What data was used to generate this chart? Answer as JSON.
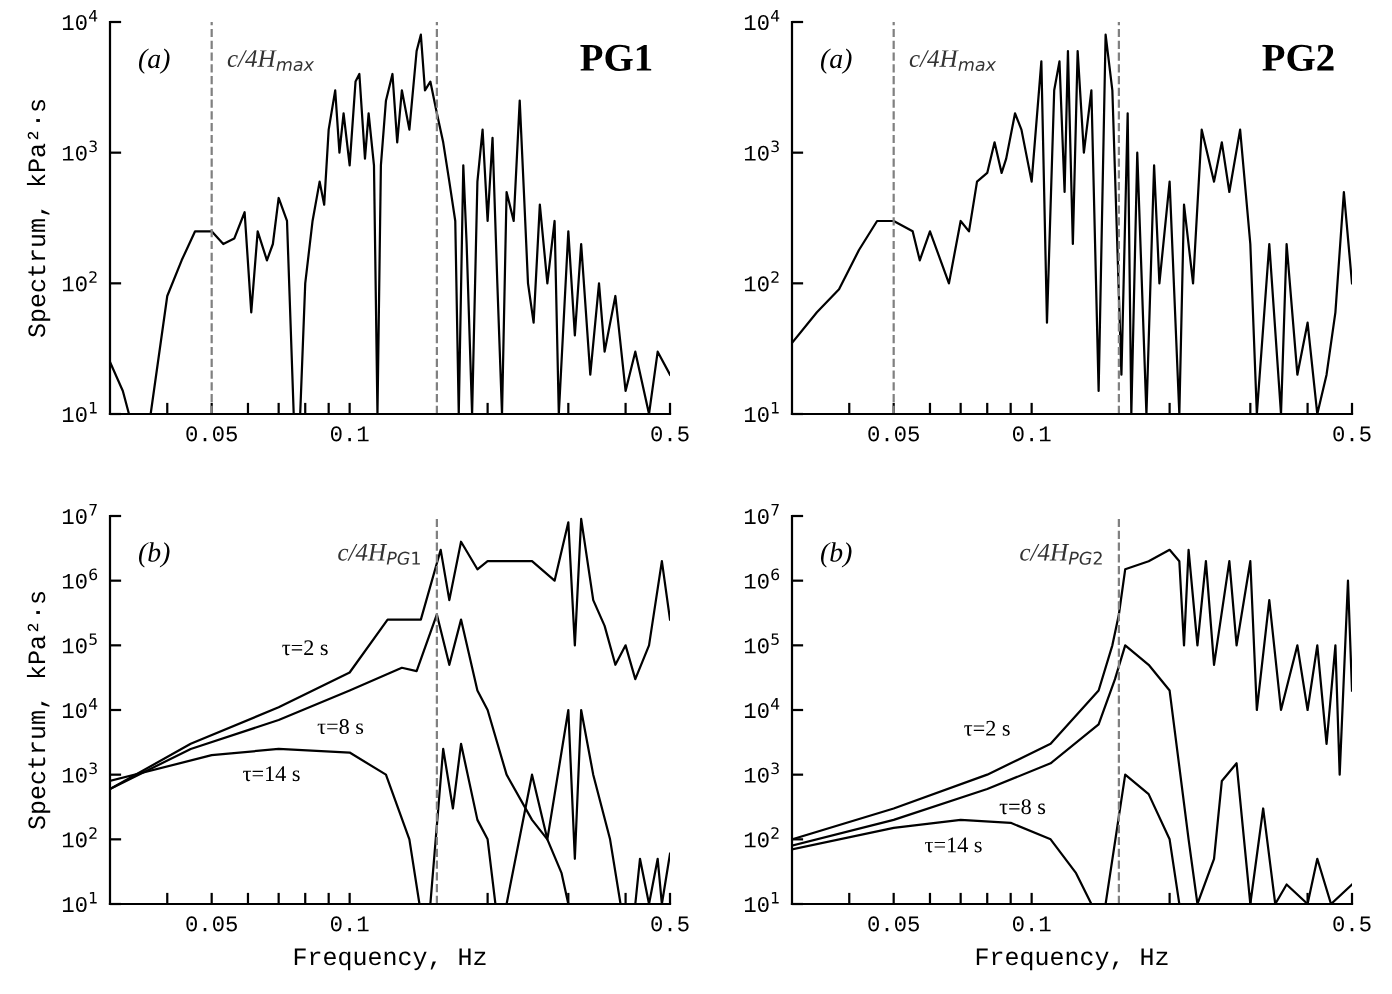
{
  "chart_data": [
    {
      "type": "line",
      "log": "xy",
      "ylabel": "Spectrum, kPa²·s",
      "xlim": [
        0.03,
        0.5
      ],
      "ylim": [
        10,
        10000
      ],
      "xticks": [
        {
          "value": 0.04,
          "label": null
        },
        {
          "value": 0.05,
          "label": "0.05"
        },
        {
          "value": 0.06,
          "label": null
        },
        {
          "value": 0.07,
          "label": null
        },
        {
          "value": 0.08,
          "label": null
        },
        {
          "value": 0.09,
          "label": null
        },
        {
          "value": 0.1,
          "label": "0.1"
        },
        {
          "value": 0.2,
          "label": null
        },
        {
          "value": 0.3,
          "label": null
        },
        {
          "value": 0.4,
          "label": null
        },
        {
          "value": 0.5,
          "label": "0.5"
        }
      ],
      "yticks": [
        {
          "value": 10,
          "label": "10$^{1}$"
        },
        {
          "value": 100,
          "label": "10$^{2}$"
        },
        {
          "value": 1000,
          "label": "10$^{3}$"
        },
        {
          "value": 10000,
          "label": "10$^{4}$"
        }
      ],
      "ref_lines": [
        {
          "axis": "x",
          "value": 0.05,
          "label": "c/4H$_{max}$",
          "color": "#808080",
          "line_style": "dashed"
        },
        {
          "axis": "x",
          "value": 0.155,
          "label": null,
          "color": "#808080",
          "line_style": "dashed"
        }
      ],
      "annotations": [
        "(a)",
        "PG1"
      ],
      "series": [
        {
          "color": "#000000",
          "x": [
            0.03,
            0.032,
            0.033,
            0.0368,
            0.04,
            0.043,
            0.046,
            0.05,
            0.053,
            0.056,
            0.059,
            0.061,
            0.063,
            0.066,
            0.068,
            0.07,
            0.073,
            0.0755,
            0.078,
            0.08,
            0.083,
            0.086,
            0.088,
            0.09,
            0.093,
            0.095,
            0.097,
            0.1,
            0.103,
            0.105,
            0.108,
            0.11,
            0.113,
            0.115,
            0.117,
            0.12,
            0.124,
            0.127,
            0.13,
            0.135,
            0.14,
            0.143,
            0.146,
            0.15,
            0.155,
            0.16,
            0.165,
            0.17,
            0.173,
            0.177,
            0.18,
            0.185,
            0.19,
            0.195,
            0.2,
            0.205,
            0.21,
            0.215,
            0.22,
            0.228,
            0.235,
            0.24,
            0.245,
            0.252,
            0.26,
            0.27,
            0.28,
            0.286,
            0.3,
            0.31,
            0.32,
            0.335,
            0.35,
            0.36,
            0.38,
            0.4,
            0.42,
            0.45,
            0.47,
            0.5
          ],
          "values": [
            25,
            15,
            10,
            10,
            80,
            150,
            250,
            250,
            200,
            220,
            350,
            60,
            250,
            150,
            200,
            450,
            300,
            10,
            10,
            100,
            300,
            600,
            400,
            1500,
            3000,
            1000,
            2000,
            800,
            3500,
            4000,
            900,
            2000,
            800,
            10,
            800,
            2500,
            4000,
            1200,
            3000,
            1500,
            6000,
            8000,
            3000,
            3500,
            2000,
            1200,
            600,
            300,
            10,
            800,
            200,
            10,
            600,
            1500,
            300,
            1300,
            100,
            10,
            500,
            300,
            2500,
            500,
            100,
            50,
            400,
            100,
            300,
            10,
            250,
            40,
            200,
            20,
            100,
            30,
            80,
            15,
            30,
            10,
            30,
            20
          ]
        }
      ]
    },
    {
      "type": "line",
      "log": "xy",
      "xlim": [
        0.03,
        0.5
      ],
      "ylim": [
        10,
        10000
      ],
      "xticks": [
        {
          "value": 0.04,
          "label": null
        },
        {
          "value": 0.05,
          "label": "0.05"
        },
        {
          "value": 0.06,
          "label": null
        },
        {
          "value": 0.07,
          "label": null
        },
        {
          "value": 0.08,
          "label": null
        },
        {
          "value": 0.09,
          "label": null
        },
        {
          "value": 0.1,
          "label": "0.1"
        },
        {
          "value": 0.2,
          "label": null
        },
        {
          "value": 0.3,
          "label": null
        },
        {
          "value": 0.4,
          "label": null
        },
        {
          "value": 0.5,
          "label": "0.5"
        }
      ],
      "yticks": [
        {
          "value": 10,
          "label": "10$^{1}$"
        },
        {
          "value": 100,
          "label": "10$^{2}$"
        },
        {
          "value": 1000,
          "label": "10$^{3}$"
        },
        {
          "value": 10000,
          "label": "10$^{4}$"
        }
      ],
      "ref_lines": [
        {
          "axis": "x",
          "value": 0.05,
          "label": "c/4H$_{max}$",
          "color": "#808080",
          "line_style": "dashed"
        },
        {
          "axis": "x",
          "value": 0.155,
          "label": null,
          "color": "#808080",
          "line_style": "dashed"
        }
      ],
      "annotations": [
        "(a)",
        "PG2"
      ],
      "series": [
        {
          "color": "#000000",
          "x": [
            0.03,
            0.034,
            0.038,
            0.042,
            0.046,
            0.05,
            0.055,
            0.057,
            0.06,
            0.066,
            0.07,
            0.073,
            0.076,
            0.08,
            0.083,
            0.086,
            0.088,
            0.092,
            0.095,
            0.1,
            0.105,
            0.108,
            0.112,
            0.115,
            0.118,
            0.12,
            0.123,
            0.126,
            0.13,
            0.135,
            0.14,
            0.145,
            0.15,
            0.157,
            0.162,
            0.165,
            0.17,
            0.178,
            0.185,
            0.19,
            0.2,
            0.21,
            0.215,
            0.225,
            0.235,
            0.25,
            0.26,
            0.27,
            0.285,
            0.3,
            0.31,
            0.33,
            0.35,
            0.36,
            0.38,
            0.4,
            0.42,
            0.44,
            0.46,
            0.48,
            0.5
          ],
          "values": [
            35,
            60,
            90,
            180,
            300,
            300,
            250,
            150,
            250,
            100,
            300,
            250,
            600,
            700,
            1200,
            700,
            900,
            2000,
            1500,
            600,
            5000,
            50,
            3000,
            5000,
            500,
            6000,
            200,
            6000,
            1000,
            3000,
            15,
            8000,
            3000,
            20,
            2000,
            10,
            1000,
            10,
            800,
            100,
            600,
            10,
            400,
            100,
            1500,
            600,
            1200,
            500,
            1500,
            200,
            10,
            200,
            10,
            200,
            20,
            50,
            10,
            20,
            60,
            500,
            100
          ]
        }
      ]
    },
    {
      "type": "line",
      "log": "xy",
      "xlabel": "Frequency, Hz",
      "ylabel": "Spectrum, kPa²·s",
      "xlim": [
        0.03,
        0.5
      ],
      "ylim": [
        10,
        10000000
      ],
      "xticks": [
        {
          "value": 0.04,
          "label": null
        },
        {
          "value": 0.05,
          "label": "0.05"
        },
        {
          "value": 0.06,
          "label": null
        },
        {
          "value": 0.07,
          "label": null
        },
        {
          "value": 0.08,
          "label": null
        },
        {
          "value": 0.09,
          "label": null
        },
        {
          "value": 0.1,
          "label": "0.1"
        },
        {
          "value": 0.2,
          "label": null
        },
        {
          "value": 0.3,
          "label": null
        },
        {
          "value": 0.4,
          "label": null
        },
        {
          "value": 0.5,
          "label": "0.5"
        }
      ],
      "yticks": [
        {
          "value": 10,
          "label": "10$^{1}$"
        },
        {
          "value": 100,
          "label": "10$^{2}$"
        },
        {
          "value": 1000,
          "label": "10$^{3}$"
        },
        {
          "value": 10000,
          "label": "10$^{4}$"
        },
        {
          "value": 100000,
          "label": "10$^{5}$"
        },
        {
          "value": 1000000,
          "label": "10$^{6}$"
        },
        {
          "value": 10000000,
          "label": "10$^{7}$"
        }
      ],
      "ref_lines": [
        {
          "axis": "x",
          "value": 0.155,
          "label": "c/4H$_{PG1}$",
          "color": "#808080",
          "line_style": "dashed"
        }
      ],
      "annotations": [
        "(b)"
      ],
      "series": [
        {
          "name": "τ=2 s",
          "color": "#000000",
          "x": [
            0.03,
            0.045,
            0.07,
            0.1,
            0.121,
            0.143,
            0.158,
            0.165,
            0.175,
            0.19,
            0.2,
            0.25,
            0.28,
            0.3,
            0.31,
            0.32,
            0.34,
            0.36,
            0.38,
            0.4,
            0.42,
            0.45,
            0.48,
            0.5
          ],
          "values": [
            600,
            3000,
            11000,
            38000,
            250000,
            250000,
            3000000,
            500000,
            4000000,
            1500000,
            2000000,
            2000000,
            1000000,
            8000000,
            100000,
            9000000,
            500000,
            200000,
            50000,
            100000,
            30000,
            100000,
            2000000,
            250000
          ]
        },
        {
          "name": "τ=8 s",
          "color": "#000000",
          "x": [
            0.03,
            0.045,
            0.07,
            0.1,
            0.13,
            0.14,
            0.155,
            0.165,
            0.175,
            0.19,
            0.2,
            0.22,
            0.25,
            0.27,
            0.29,
            0.3
          ],
          "values": [
            600,
            2500,
            7000,
            20000,
            45000,
            40000,
            300000,
            50000,
            250000,
            20000,
            10000,
            1000,
            200,
            100,
            30,
            10
          ]
        },
        {
          "name": "τ=14 s",
          "color": "#000000",
          "x": [
            0.03,
            0.05,
            0.07,
            0.1,
            0.12,
            0.135,
            0.142,
            0.15,
            0.16,
            0.168,
            0.175,
            0.19,
            0.2,
            0.208,
            0.22,
            0.25,
            0.27,
            0.3,
            0.31,
            0.32,
            0.34,
            0.37,
            0.39,
            0.42,
            0.43,
            0.45,
            0.47,
            0.48,
            0.5
          ],
          "values": [
            800,
            2000,
            2500,
            2200,
            1000,
            100,
            10,
            10,
            2500,
            300,
            3000,
            200,
            100,
            10,
            10,
            1000,
            100,
            10000,
            50,
            10000,
            1000,
            100,
            10,
            10,
            50,
            10,
            50,
            10,
            60
          ]
        }
      ]
    },
    {
      "type": "line",
      "log": "xy",
      "xlabel": "Frequency, Hz",
      "xlim": [
        0.03,
        0.5
      ],
      "ylim": [
        10,
        10000000
      ],
      "xticks": [
        {
          "value": 0.04,
          "label": null
        },
        {
          "value": 0.05,
          "label": "0.05"
        },
        {
          "value": 0.06,
          "label": null
        },
        {
          "value": 0.07,
          "label": null
        },
        {
          "value": 0.08,
          "label": null
        },
        {
          "value": 0.09,
          "label": null
        },
        {
          "value": 0.1,
          "label": "0.1"
        },
        {
          "value": 0.2,
          "label": null
        },
        {
          "value": 0.3,
          "label": null
        },
        {
          "value": 0.4,
          "label": null
        },
        {
          "value": 0.5,
          "label": "0.5"
        }
      ],
      "yticks": [
        {
          "value": 10,
          "label": "10$^{1}$"
        },
        {
          "value": 100,
          "label": "10$^{2}$"
        },
        {
          "value": 1000,
          "label": "10$^{3}$"
        },
        {
          "value": 10000,
          "label": "10$^{4}$"
        },
        {
          "value": 100000,
          "label": "10$^{5}$"
        },
        {
          "value": 1000000,
          "label": "10$^{6}$"
        },
        {
          "value": 10000000,
          "label": "10$^{7}$"
        }
      ],
      "ref_lines": [
        {
          "axis": "x",
          "value": 0.155,
          "label": "c/4H$_{PG2}$",
          "color": "#808080",
          "line_style": "dashed"
        }
      ],
      "annotations": [
        "(b)"
      ],
      "series": [
        {
          "name": "τ=2 s",
          "color": "#000000",
          "x": [
            0.03,
            0.05,
            0.08,
            0.11,
            0.14,
            0.15,
            0.155,
            0.16,
            0.18,
            0.2,
            0.21,
            0.215,
            0.22,
            0.23,
            0.24,
            0.25,
            0.27,
            0.28,
            0.3,
            0.31,
            0.33,
            0.35,
            0.38,
            0.4,
            0.42,
            0.44,
            0.46,
            0.47,
            0.49,
            0.5
          ],
          "values": [
            100,
            300,
            1000,
            3000,
            20000,
            100000,
            300000,
            1500000,
            2000000,
            3000000,
            2000000,
            100000,
            3000000,
            100000,
            2000000,
            50000,
            2000000,
            100000,
            2000000,
            10000,
            500000,
            10000,
            100000,
            10000,
            100000,
            3000,
            100000,
            1000,
            1000000,
            20000
          ]
        },
        {
          "name": "τ=8 s",
          "color": "#000000",
          "x": [
            0.03,
            0.05,
            0.08,
            0.11,
            0.14,
            0.152,
            0.16,
            0.18,
            0.2,
            0.22,
            0.23,
            0.25,
            0.26,
            0.28,
            0.3,
            0.32,
            0.34,
            0.36,
            0.4,
            0.42,
            0.45,
            0.5
          ],
          "values": [
            80,
            200,
            600,
            1500,
            6000,
            30000,
            100000,
            50000,
            20000,
            100,
            10,
            50,
            800,
            1500,
            10,
            300,
            10,
            20,
            10,
            50,
            10,
            20
          ]
        },
        {
          "name": "τ=14 s",
          "color": "#000000",
          "x": [
            0.03,
            0.05,
            0.07,
            0.09,
            0.11,
            0.125,
            0.135,
            0.145,
            0.16,
            0.18,
            0.2,
            0.21
          ],
          "values": [
            70,
            150,
            200,
            180,
            100,
            30,
            10,
            10,
            1000,
            500,
            100,
            10
          ]
        }
      ]
    }
  ]
}
